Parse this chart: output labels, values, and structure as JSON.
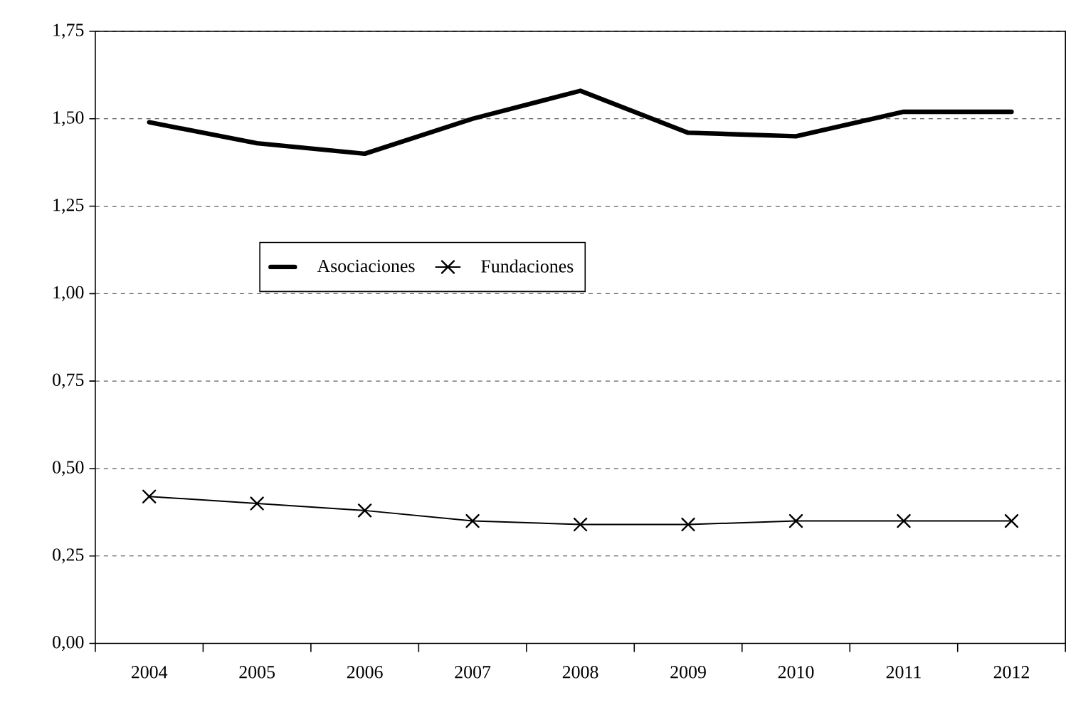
{
  "chart_data": {
    "type": "line",
    "categories": [
      "2004",
      "2005",
      "2006",
      "2007",
      "2008",
      "2009",
      "2010",
      "2011",
      "2012"
    ],
    "series": [
      {
        "name": "Asociaciones",
        "color": "#000000",
        "marker": "none",
        "values": [
          1.49,
          1.43,
          1.4,
          1.5,
          1.58,
          1.46,
          1.45,
          1.52,
          1.52
        ]
      },
      {
        "name": "Fundaciones",
        "color": "#000000",
        "marker": "cross",
        "values": [
          0.42,
          0.4,
          0.38,
          0.35,
          0.34,
          0.34,
          0.35,
          0.35,
          0.35
        ]
      }
    ],
    "ylim": [
      0,
      1.75
    ],
    "yticks": [
      {
        "value": 0,
        "label": "0,00"
      },
      {
        "value": 0.25,
        "label": "0,25"
      },
      {
        "value": 0.5,
        "label": "0,50"
      },
      {
        "value": 0.75,
        "label": "0,75"
      },
      {
        "value": 1,
        "label": "1,00"
      },
      {
        "value": 1.25,
        "label": "1,25"
      },
      {
        "value": 1.5,
        "label": "1,50"
      },
      {
        "value": 1.75,
        "label": "1,75"
      }
    ],
    "grid": "y",
    "legend": "center",
    "line_style": "solid"
  }
}
